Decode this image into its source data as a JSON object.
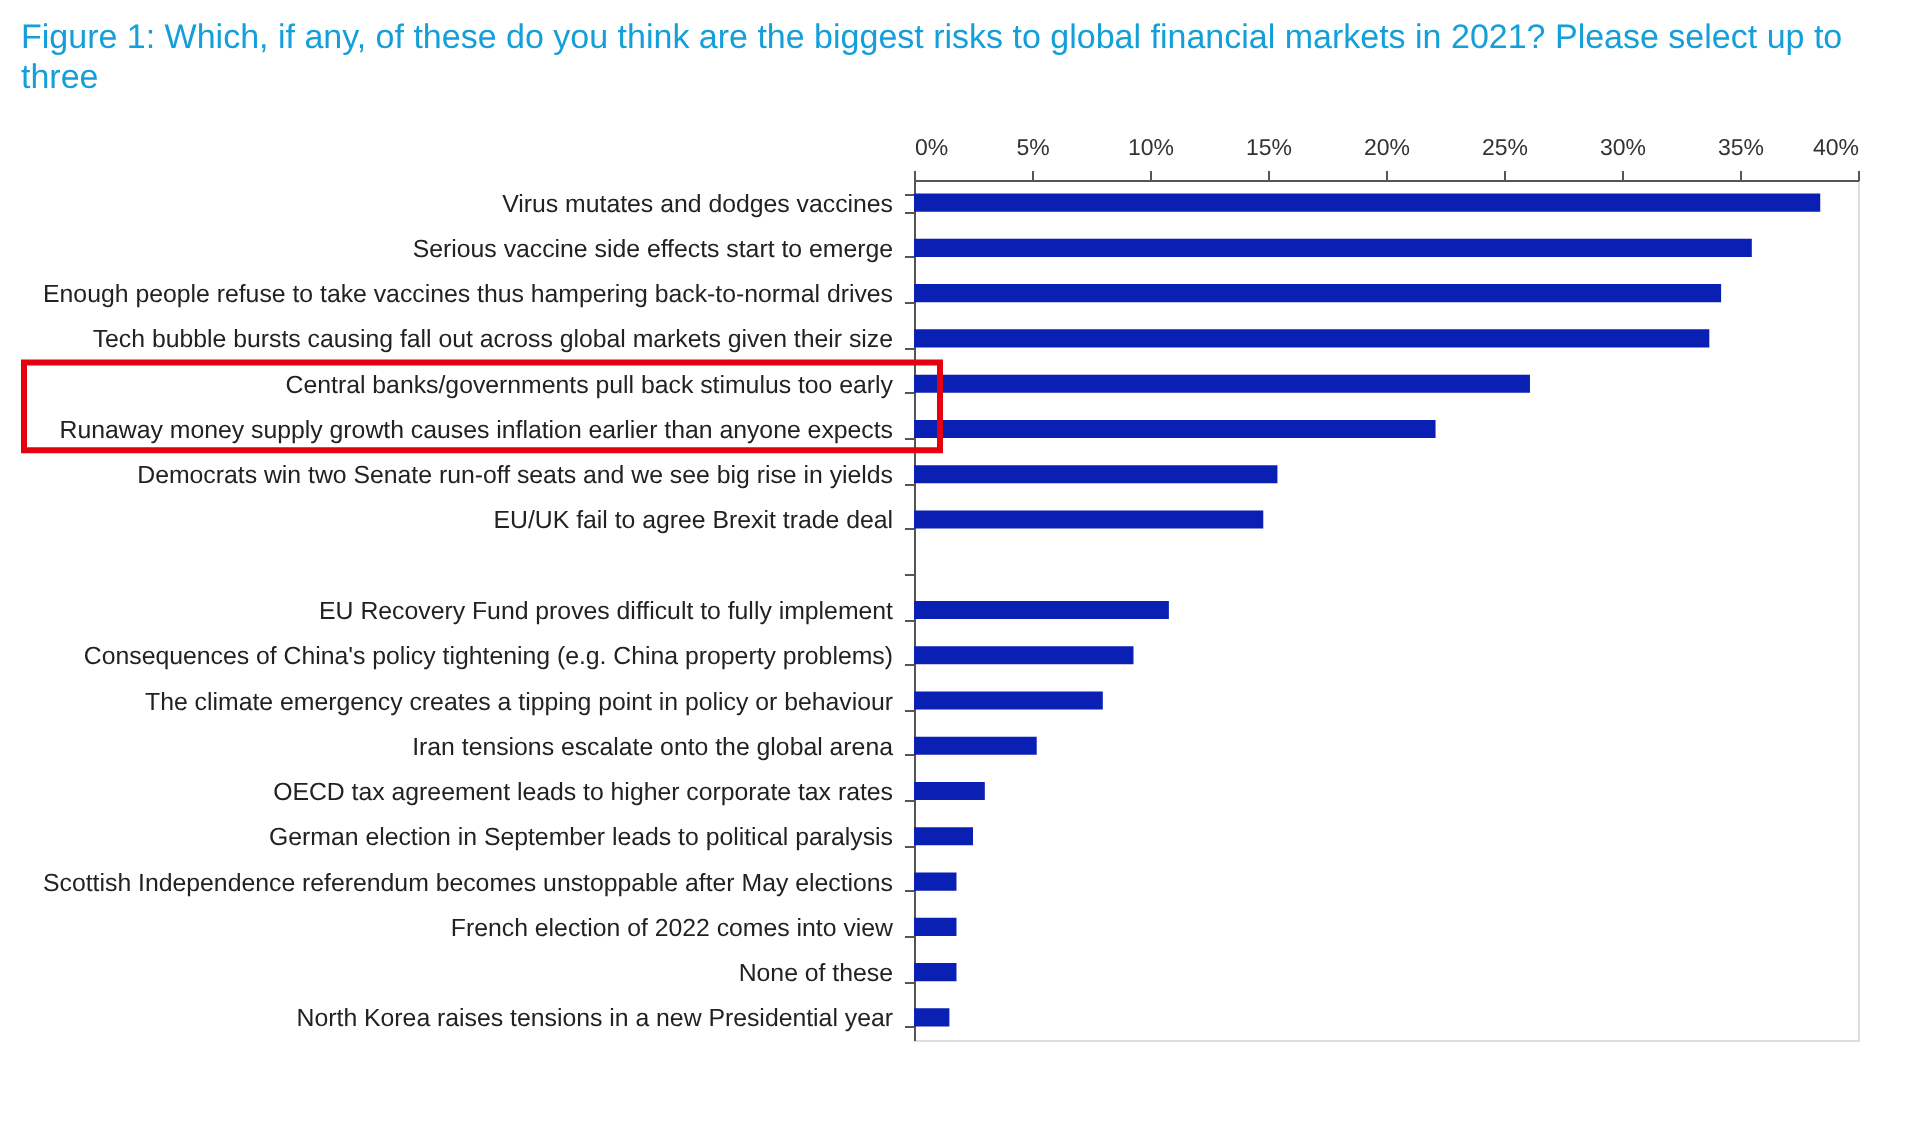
{
  "chart_data": {
    "type": "bar",
    "orientation": "horizontal",
    "title": "Figure 1: Which, if any, of these do you think are the biggest risks to global financial markets in 2021? Please select up to three",
    "categories": [
      "Virus mutates and dodges vaccines",
      "Serious vaccine side effects start to emerge",
      "Enough people refuse to take vaccines thus hampering back-to-normal drives",
      "Tech bubble bursts causing fall out across global markets given their size",
      "Central banks/governments pull back stimulus too early",
      "Runaway money supply growth causes inflation earlier than anyone expects",
      "Democrats win two Senate run-off seats and we see big rise in yields",
      "EU/UK fail to agree Brexit trade deal",
      null,
      "EU Recovery Fund proves difficult to fully implement",
      "Consequences of China's policy tightening (e.g. China property problems)",
      "The climate emergency creates a tipping point in policy or behaviour",
      "Iran tensions escalate onto the global arena",
      "OECD tax agreement leads to higher corporate tax rates",
      "German election in September leads to political paralysis",
      "Scottish Independence referendum becomes unstoppable after May elections",
      "French election of 2022 comes into view",
      "None of these",
      "North Korea raises tensions in a new Presidential year"
    ],
    "values": [
      38.4,
      35.5,
      34.2,
      33.7,
      26.1,
      22.1,
      15.4,
      14.8,
      null,
      10.8,
      9.3,
      8.0,
      5.2,
      3.0,
      2.5,
      1.8,
      1.8,
      1.8,
      1.5
    ],
    "color": "#0a1fb4",
    "grid": false,
    "xlim": [
      0,
      40
    ],
    "xticks": [
      {
        "value": 0,
        "label": "0%"
      },
      {
        "value": 5,
        "label": "5%"
      },
      {
        "value": 10,
        "label": "10%"
      },
      {
        "value": 15,
        "label": "15%"
      },
      {
        "value": 20,
        "label": "20%"
      },
      {
        "value": 25,
        "label": "25%"
      },
      {
        "value": 30,
        "label": "30%"
      },
      {
        "value": 35,
        "label": "35%"
      },
      {
        "value": 40,
        "label": "40%"
      }
    ]
  }
}
